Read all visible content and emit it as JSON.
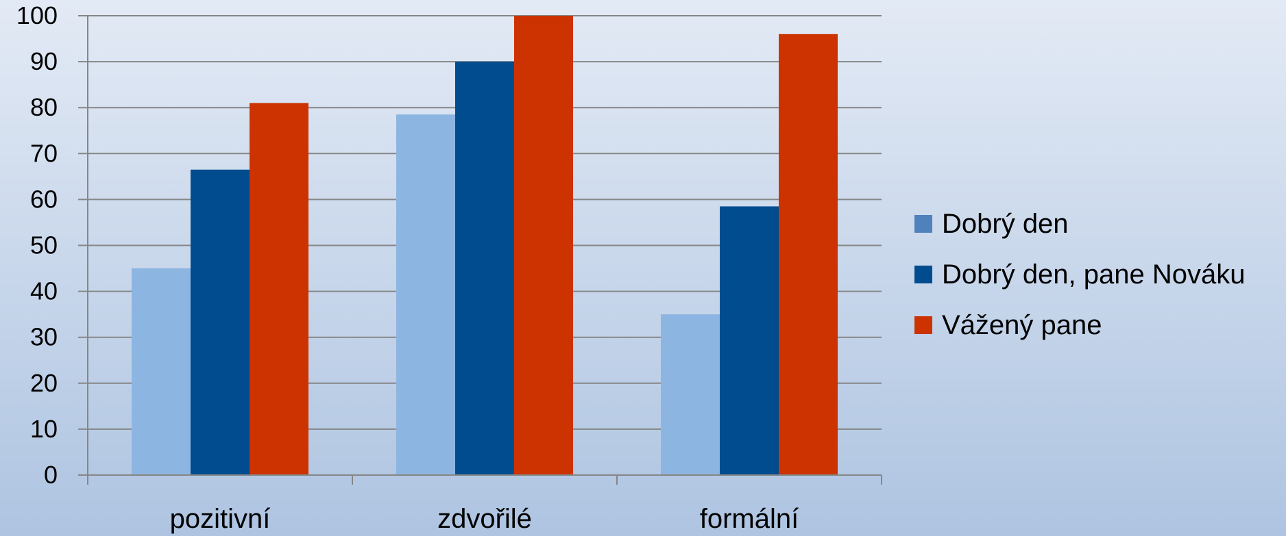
{
  "chart_data": {
    "type": "bar",
    "categories": [
      "pozitivní",
      "zdvořilé",
      "formální"
    ],
    "series": [
      {
        "name": "Dobrý den",
        "values": [
          45,
          78.5,
          35
        ],
        "color": "#8db5e2",
        "legend_color": "#4f81bd"
      },
      {
        "name": "Dobrý den, pane Nováku",
        "values": [
          66.5,
          90,
          58.5
        ],
        "color": "#004c8f",
        "legend_color": "#004c8f"
      },
      {
        "name": "Vážený pane",
        "values": [
          81,
          100,
          96
        ],
        "color": "#cc3300",
        "legend_color": "#cc3300"
      }
    ],
    "yticks": [
      "0",
      "10",
      "20",
      "30",
      "40",
      "50",
      "60",
      "70",
      "80",
      "90",
      "100"
    ],
    "ylim": [
      0,
      100
    ],
    "grid": true,
    "legend_position": "right",
    "gridline_color": "#868686",
    "title": "",
    "xlabel": "",
    "ylabel": ""
  }
}
